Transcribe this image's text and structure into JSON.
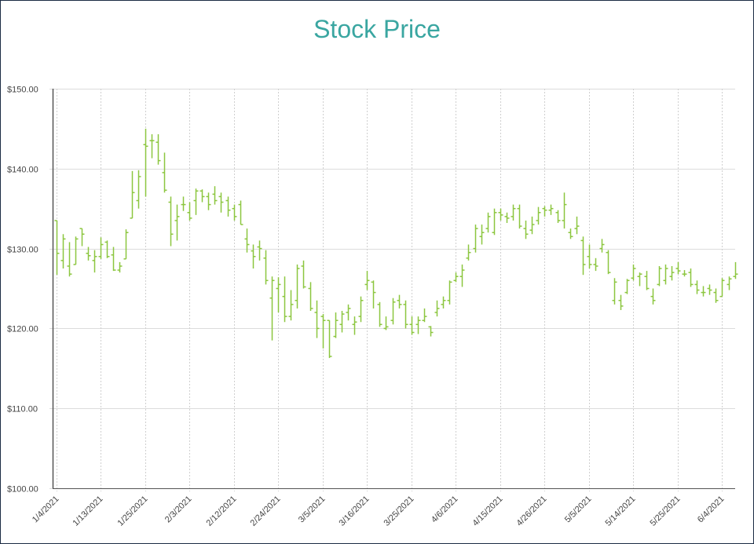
{
  "chart_data": {
    "type": "ohlc",
    "title": "Stock Price",
    "xlabel": "",
    "ylabel": "",
    "ylim": [
      100,
      150
    ],
    "y_ticks": [
      "$100.00",
      "$110.00",
      "$120.00",
      "$130.00",
      "$140.00",
      "$150.00"
    ],
    "y_tick_values": [
      100,
      110,
      120,
      130,
      140,
      150
    ],
    "x_tick_labels": [
      "1/4/2021",
      "1/13/2021",
      "1/25/2021",
      "2/3/2021",
      "2/12/2021",
      "2/24/2021",
      "3/5/2021",
      "3/16/2021",
      "3/25/2021",
      "4/6/2021",
      "4/15/2021",
      "4/26/2021",
      "5/5/2021",
      "5/14/2021",
      "5/25/2021",
      "6/4/2021"
    ],
    "x_tick_every_n_bars": 7,
    "series_color": "#8cc63f",
    "grid": true,
    "ohlc": [
      [
        133.5,
        133.5,
        126.7,
        129.4
      ],
      [
        128.5,
        131.8,
        127.5,
        131.2
      ],
      [
        127.8,
        130.8,
        126.5,
        126.8
      ],
      [
        128,
        131.5,
        128,
        131.2
      ],
      [
        132.5,
        132.5,
        130.3,
        131.8
      ],
      [
        129.4,
        130.2,
        128.5,
        129.1
      ],
      [
        128.5,
        129.8,
        127,
        129
      ],
      [
        129,
        131.4,
        128.7,
        130.5
      ],
      [
        130.8,
        131,
        128.8,
        129
      ],
      [
        129.2,
        130.2,
        127.2,
        127.3
      ],
      [
        127.3,
        128.3,
        127,
        127.8
      ],
      [
        128.7,
        132.4,
        128.7,
        132
      ],
      [
        133.8,
        139.7,
        133.8,
        137
      ],
      [
        136,
        139.8,
        135,
        139
      ],
      [
        143,
        145,
        136.5,
        142.8
      ],
      [
        143.5,
        144.3,
        141.3,
        143.5
      ],
      [
        143.3,
        144.3,
        140.5,
        141
      ],
      [
        139.5,
        142,
        137,
        137.3
      ],
      [
        135.8,
        136.5,
        130.3,
        131.8
      ],
      [
        133.5,
        135.5,
        131,
        134
      ],
      [
        135.5,
        136.5,
        134.7,
        135.5
      ],
      [
        134.5,
        135.8,
        133.5,
        133.8
      ],
      [
        136,
        137.5,
        134.2,
        137.2
      ],
      [
        137.2,
        137.4,
        135.8,
        136.5
      ],
      [
        136.5,
        137,
        134.8,
        135.5
      ],
      [
        136.8,
        137.8,
        135.5,
        136
      ],
      [
        136.5,
        137,
        134.5,
        135.8
      ],
      [
        136,
        136.5,
        134,
        134.8
      ],
      [
        135,
        135.5,
        133.5,
        134
      ],
      [
        135.5,
        136,
        133,
        133
      ],
      [
        131.2,
        132.5,
        129.5,
        130.5
      ],
      [
        129.7,
        130.5,
        127.5,
        129
      ],
      [
        130.2,
        131,
        128.5,
        130
      ],
      [
        128.8,
        129.8,
        125.5,
        126
      ],
      [
        123.8,
        126.5,
        118.5,
        126
      ],
      [
        125,
        126.4,
        122,
        125.5
      ],
      [
        124,
        126.5,
        120.8,
        121.5
      ],
      [
        121.5,
        124.8,
        121,
        123
      ],
      [
        123.5,
        128,
        122.5,
        127.5
      ],
      [
        127.8,
        128.5,
        125,
        125.2
      ],
      [
        125,
        125.8,
        122.2,
        122.5
      ],
      [
        122,
        123.5,
        118.8,
        120
      ],
      [
        121.5,
        121.8,
        117.5,
        121
      ],
      [
        121,
        121,
        116.3,
        116.5
      ],
      [
        119,
        122,
        118.8,
        121
      ],
      [
        120.5,
        122.2,
        119.5,
        121.8
      ],
      [
        122,
        123,
        121,
        122.5
      ],
      [
        120.5,
        121.5,
        119.2,
        120.8
      ],
      [
        121.5,
        124,
        120.8,
        123.5
      ],
      [
        125.5,
        127.2,
        124.8,
        126
      ],
      [
        125.8,
        126,
        122.5,
        124.5
      ],
      [
        123,
        123.3,
        120.2,
        120.5
      ],
      [
        120,
        121.5,
        119.8,
        120.2
      ],
      [
        121,
        123.8,
        120.5,
        123.3
      ],
      [
        123.5,
        124.2,
        122.5,
        123
      ],
      [
        123,
        123.5,
        120,
        120.5
      ],
      [
        120.5,
        121.5,
        119.2,
        119.5
      ],
      [
        120.5,
        121.5,
        119.3,
        121
      ],
      [
        121,
        122.5,
        120.8,
        121.5
      ],
      [
        120.2,
        120.3,
        119,
        119.5
      ],
      [
        122,
        123.5,
        121.5,
        122.5
      ],
      [
        123,
        124,
        122.5,
        123.5
      ],
      [
        123.5,
        126,
        123,
        125.8
      ],
      [
        126,
        127,
        125.8,
        126.5
      ],
      [
        126.5,
        128,
        125.2,
        127.3
      ],
      [
        128.8,
        130.5,
        128.5,
        129.5
      ],
      [
        130,
        133,
        129.5,
        132.5
      ],
      [
        131.5,
        133,
        130.5,
        132
      ],
      [
        132.5,
        134.5,
        132,
        134
      ],
      [
        132,
        135,
        131.7,
        134.5
      ],
      [
        134.5,
        135,
        133.5,
        134.2
      ],
      [
        134,
        134.5,
        133.2,
        133.8
      ],
      [
        134,
        135.5,
        133.5,
        135
      ],
      [
        135,
        135.5,
        132.5,
        132.8
      ],
      [
        132.5,
        133.5,
        131.2,
        131.8
      ],
      [
        132.3,
        134,
        131.8,
        133
      ],
      [
        133.5,
        135.2,
        133,
        134.5
      ],
      [
        135,
        135.3,
        134,
        134.8
      ],
      [
        134.8,
        135.5,
        134.2,
        135
      ],
      [
        134.5,
        134.8,
        133.2,
        133.5
      ],
      [
        133.5,
        137,
        132.5,
        135.5
      ],
      [
        132,
        132.5,
        131.2,
        131.5
      ],
      [
        132.5,
        134,
        131.8,
        132.8
      ],
      [
        131,
        131.5,
        126.7,
        128
      ],
      [
        129,
        130.5,
        127.5,
        128
      ],
      [
        128,
        128.8,
        127.2,
        127.8
      ],
      [
        130,
        131.2,
        129.5,
        130.5
      ],
      [
        129.5,
        129.8,
        126.8,
        127
      ],
      [
        123.5,
        126.3,
        123,
        125.8
      ],
      [
        123.5,
        124.2,
        122.3,
        122.8
      ],
      [
        124.5,
        126.2,
        124.3,
        126
      ],
      [
        126.3,
        128,
        126,
        127.5
      ],
      [
        126.5,
        127,
        125.3,
        126.8
      ],
      [
        126.5,
        127.2,
        124.8,
        125
      ],
      [
        124,
        125,
        123,
        123.5
      ],
      [
        125.5,
        127.8,
        125.3,
        127.5
      ],
      [
        126,
        128,
        125.5,
        127.5
      ],
      [
        126.5,
        127.8,
        126,
        127
      ],
      [
        127.5,
        128.3,
        126.8,
        127.2
      ],
      [
        126.8,
        127.3,
        126.5,
        126.8
      ],
      [
        127,
        127.5,
        125.2,
        125.5
      ],
      [
        125.5,
        126,
        124.3,
        124.8
      ],
      [
        124.5,
        125.3,
        124,
        124.5
      ],
      [
        125,
        125.5,
        124.2,
        124.8
      ],
      [
        124.5,
        125,
        123.2,
        123.5
      ],
      [
        124,
        126.3,
        124,
        126
      ],
      [
        125.5,
        126.5,
        124.8,
        126.2
      ],
      [
        126.5,
        128.3,
        126.2,
        126.8
      ]
    ]
  }
}
